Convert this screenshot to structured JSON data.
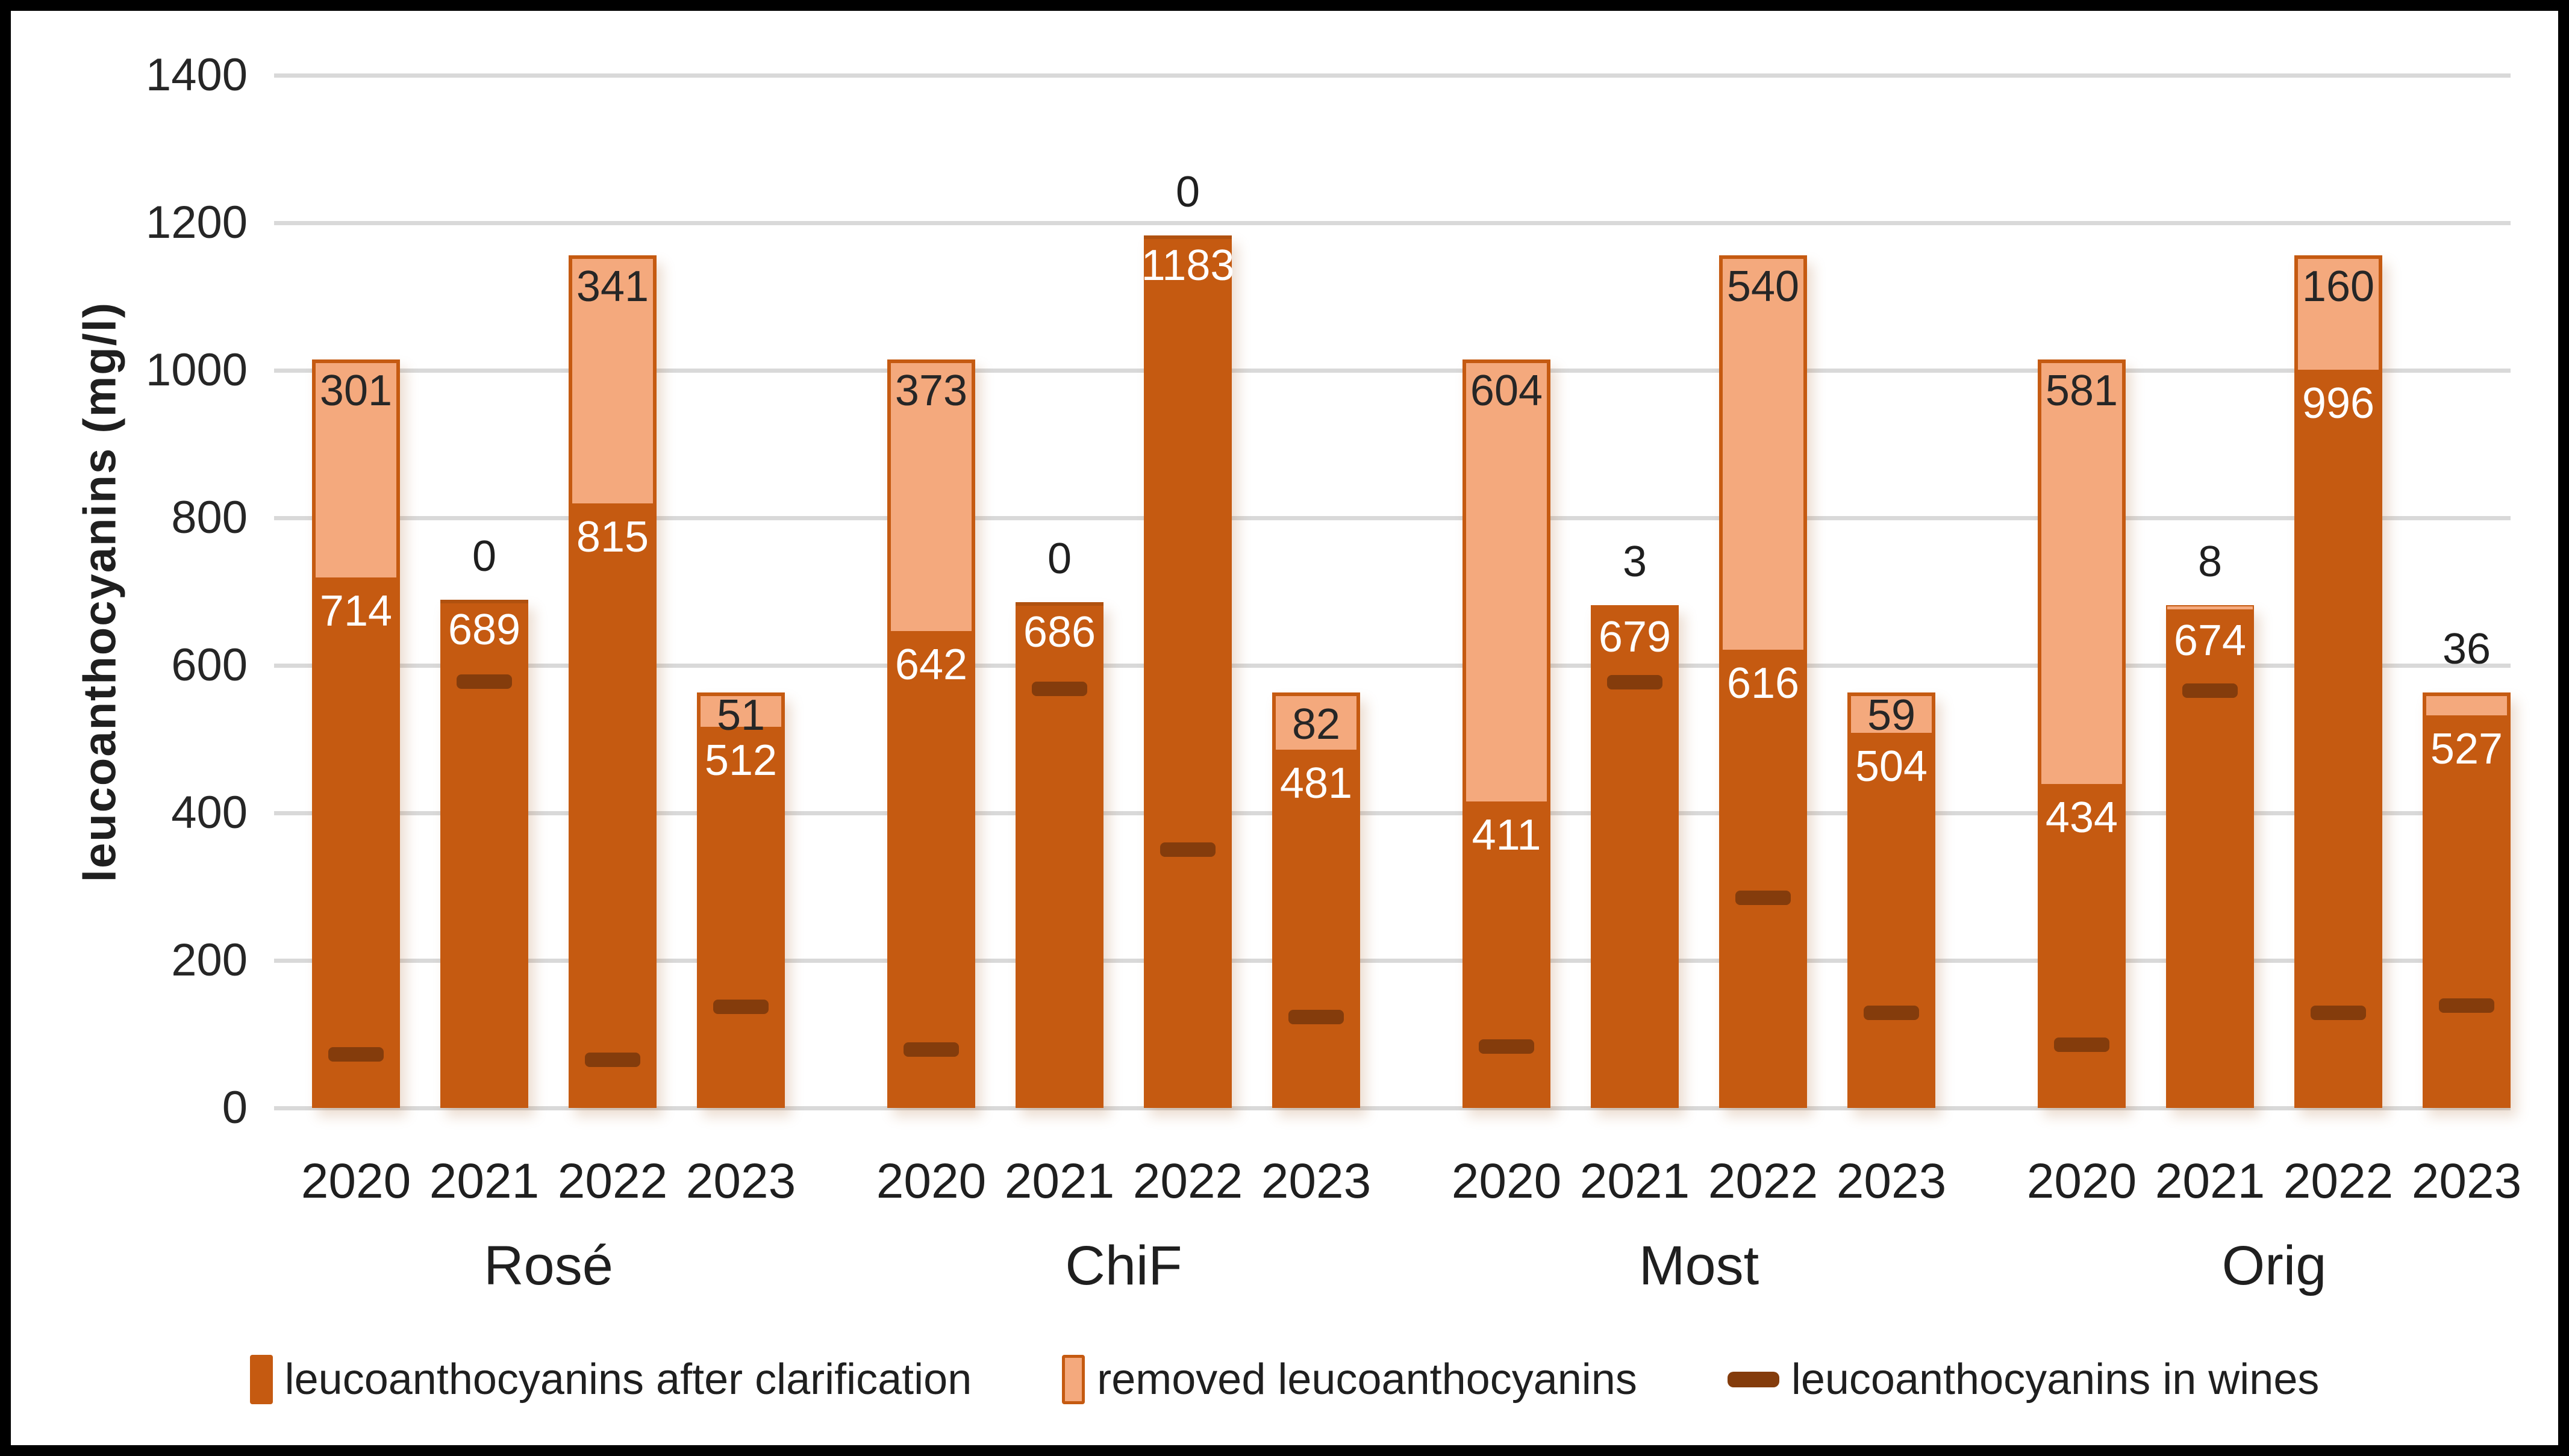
{
  "chart_data": {
    "type": "bar",
    "stacked": true,
    "title": "",
    "xlabel": "",
    "ylabel": "leucoanthocyanins (mg/l)",
    "ylim": [
      0,
      1400
    ],
    "ytick_step": 200,
    "yticks": [
      0,
      200,
      400,
      600,
      800,
      1000,
      1200,
      1400
    ],
    "grid": true,
    "legend_position": "bottom",
    "group_labels": [
      "Rosé",
      "ChiF",
      "Most",
      "Orig"
    ],
    "year_labels": [
      "2020",
      "2021",
      "2022",
      "2023"
    ],
    "series": [
      {
        "name": "leucoanthocyanins after clarification",
        "marker": "bar",
        "color": "#C55A11",
        "data_labels": true,
        "values": {
          "Rosé": [
            714,
            689,
            815,
            512
          ],
          "ChiF": [
            642,
            686,
            1183,
            481
          ],
          "Most": [
            411,
            679,
            616,
            504
          ],
          "Orig": [
            434,
            674,
            996,
            527
          ]
        }
      },
      {
        "name": "removed leucoanthocyanins",
        "marker": "bar",
        "color": "#F4A97D",
        "data_labels": true,
        "values": {
          "Rosé": [
            301,
            0,
            341,
            51
          ],
          "ChiF": [
            373,
            0,
            0,
            82
          ],
          "Most": [
            604,
            3,
            540,
            59
          ],
          "Orig": [
            581,
            8,
            160,
            36
          ]
        }
      },
      {
        "name": "leucoanthocyanins in wines",
        "marker": "dash",
        "color": "#843C0C",
        "data_labels": false,
        "values": {
          "Rosé": [
            73,
            578,
            65,
            137
          ],
          "ChiF": [
            79,
            568,
            350,
            123
          ],
          "Most": [
            83,
            577,
            285,
            129
          ],
          "Orig": [
            86,
            566,
            129,
            139
          ]
        }
      }
    ],
    "colors": {
      "bar_dark": "#C55A11",
      "bar_light": "#F4A97D",
      "dash": "#843C0C",
      "gridline": "#D9D9D9",
      "text": "#1F1F1F",
      "label_on_dark": "#FFFFFF",
      "label_on_light": "#262626",
      "background": "#FFFFFF",
      "frame_border": "#000000"
    }
  }
}
